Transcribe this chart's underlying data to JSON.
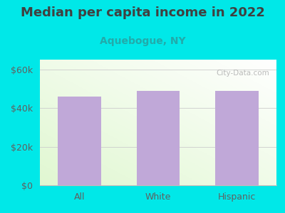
{
  "title": "Median per capita income in 2022",
  "subtitle": "Aquebogue, NY",
  "categories": [
    "All",
    "White",
    "Hispanic"
  ],
  "values": [
    46000,
    49000,
    49000
  ],
  "bar_color": "#c0a8d8",
  "outer_bg": "#00e8e8",
  "title_color": "#404040",
  "subtitle_color": "#22aaaa",
  "axis_label_color": "#606060",
  "ytick_labels": [
    "$0",
    "$20k",
    "$40k",
    "$60k"
  ],
  "ytick_values": [
    0,
    20000,
    40000,
    60000
  ],
  "ylim": [
    0,
    65000
  ],
  "watermark": "City-Data.com",
  "title_fontsize": 13,
  "subtitle_fontsize": 10,
  "tick_fontsize": 9
}
